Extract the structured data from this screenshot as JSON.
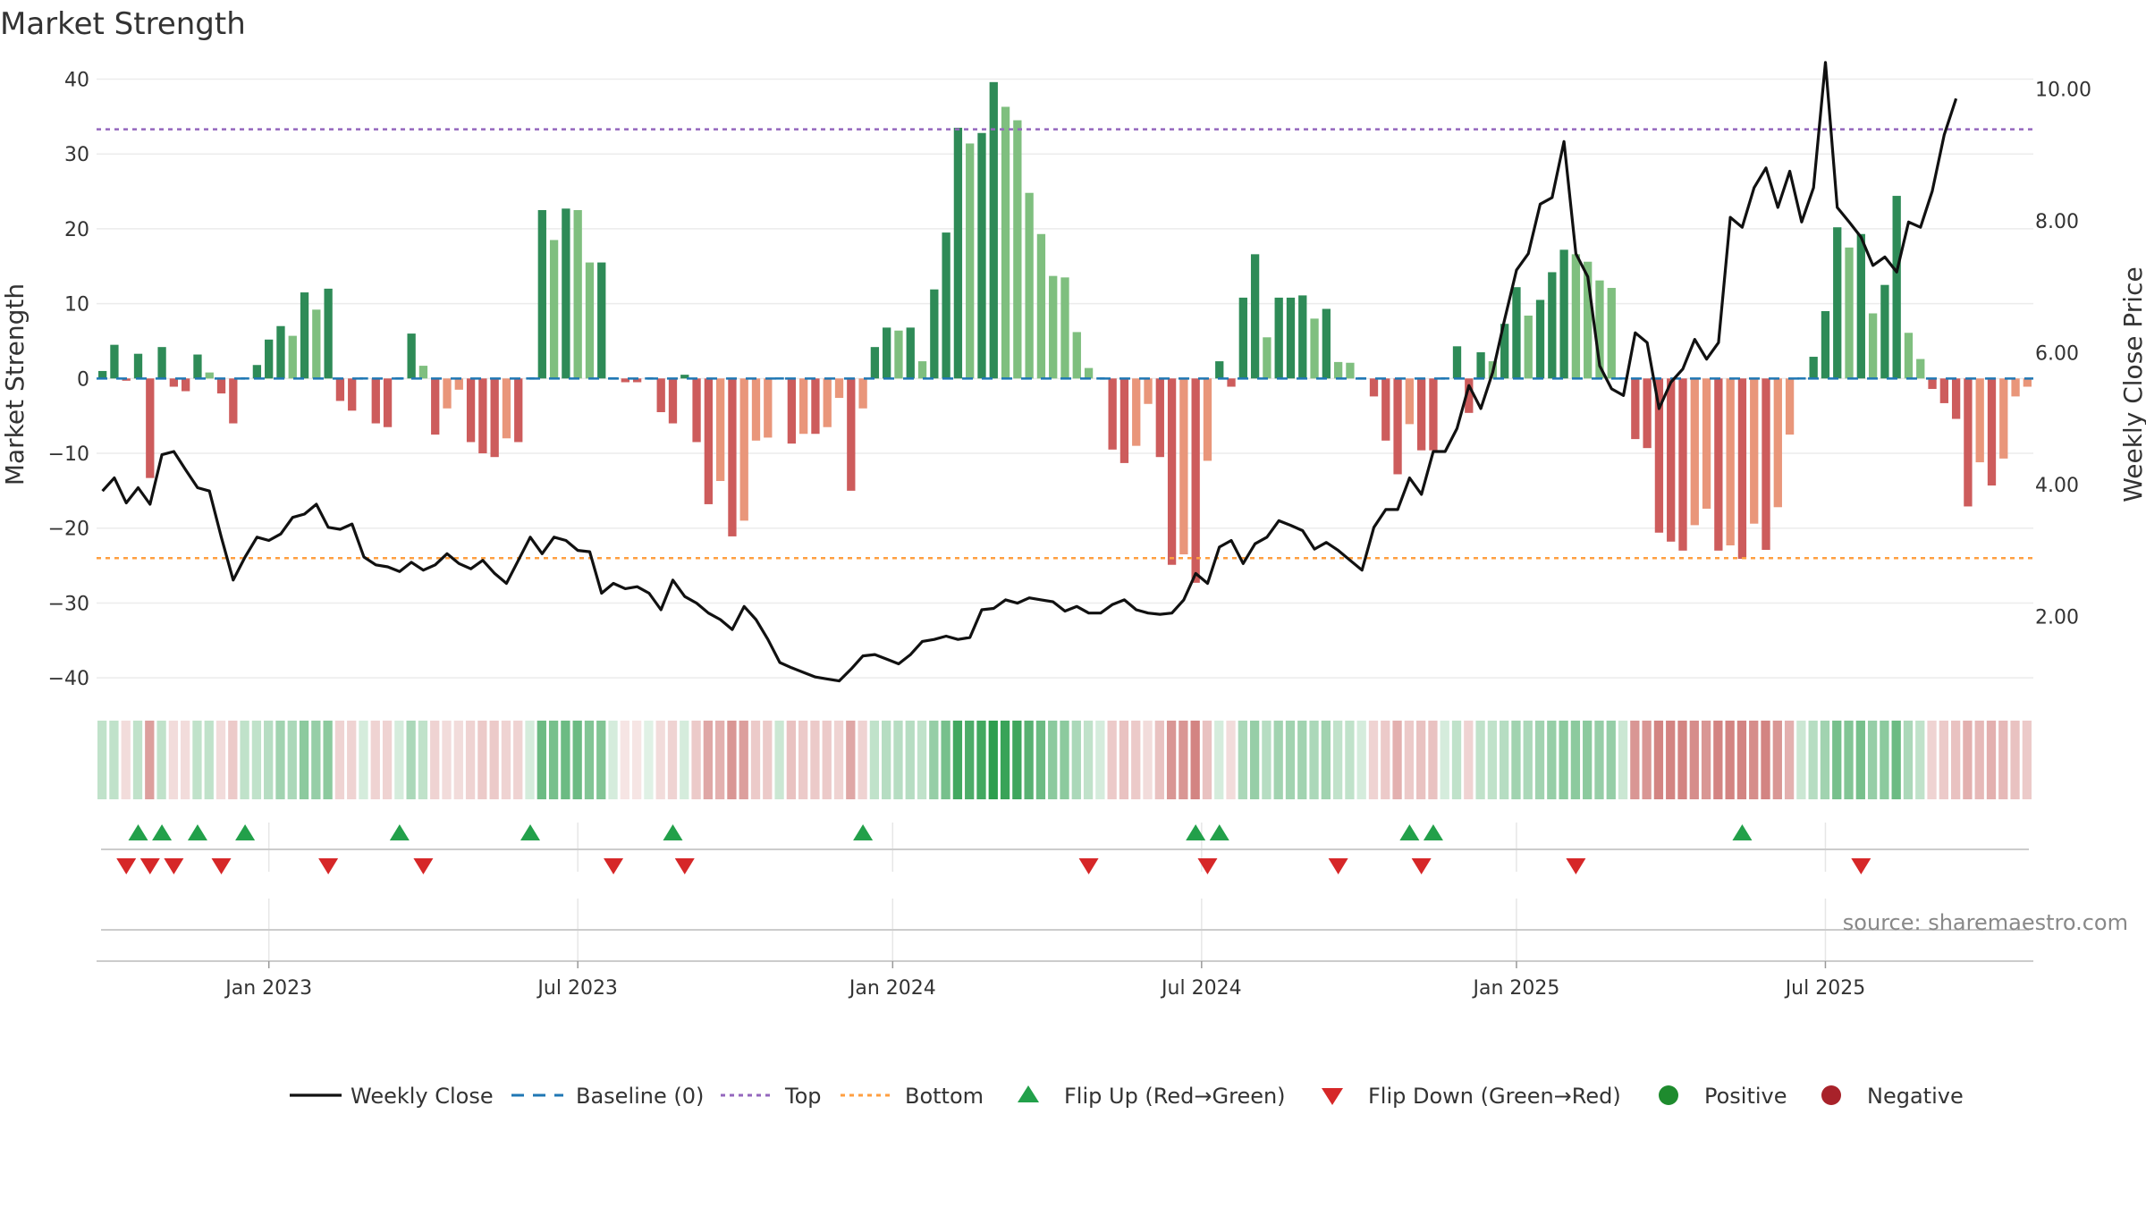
{
  "chart_data": {
    "type": "bar",
    "title": "Market Strength",
    "ylabel_left": "Market Strength",
    "ylabel_right": "Weekly Close Price",
    "ylim_left": [
      -45,
      44
    ],
    "ylim_right": [
      0.5,
      10.6
    ],
    "left_ticks": [
      40,
      30,
      20,
      10,
      0,
      -10,
      -20,
      -30,
      -40
    ],
    "left_tick_labels": [
      "40",
      "30",
      "20",
      "10",
      "0",
      "−10",
      "−20",
      "−30",
      "−40"
    ],
    "right_ticks": [
      10,
      8,
      6,
      4,
      2
    ],
    "right_tick_labels": [
      "10.00",
      "8.00",
      "6.00",
      "4.00",
      "2.00"
    ],
    "x_tick_weeks": [
      14.5,
      40.5,
      67,
      93,
      119.5,
      145.5
    ],
    "x_tick_labels": [
      "Jan 2023",
      "Jul 2023",
      "Jan 2024",
      "Jul 2024",
      "Jan 2025",
      "Jul 2025"
    ],
    "top_line": 33.3,
    "bottom_line": -24.0,
    "strength": [
      1,
      4.5,
      -0.3,
      3.3,
      -13.3,
      4.2,
      -1.1,
      -1.7,
      3.2,
      0.8,
      -2,
      -6,
      0,
      1.8,
      5.2,
      7,
      5.7,
      11.5,
      9.2,
      12,
      -3,
      -4.3,
      0,
      -6,
      -6.5,
      0,
      6,
      1.7,
      -7.5,
      -4,
      -1.5,
      -8.5,
      -10,
      -10.5,
      -8,
      -8.5,
      0,
      22.5,
      18.5,
      22.7,
      22.5,
      15.5,
      15.5,
      0,
      -0.5,
      -0.5,
      0,
      -4.5,
      -6,
      0.5,
      -8.5,
      -16.8,
      -13.7,
      -21.1,
      -19,
      -8.3,
      -7.9,
      0,
      -8.7,
      -7.4,
      -7.4,
      -6.5,
      -2.6,
      -15,
      -4,
      4.2,
      6.8,
      6.4,
      6.8,
      2.3,
      11.9,
      19.5,
      33.5,
      31.4,
      32.8,
      39.6,
      36.3,
      34.5,
      24.8,
      19.3,
      13.7,
      13.5,
      6.2,
      1.4,
      0,
      -9.5,
      -11.3,
      -9,
      -3.4,
      -10.5,
      -24.9,
      -23.5,
      -27.3,
      -11,
      2.3,
      -1.1,
      10.8,
      16.6,
      5.5,
      10.8,
      10.8,
      11.1,
      8,
      9.3,
      2.2,
      2.1,
      0,
      -2.4,
      -8.3,
      -12.8,
      -6.1,
      -9.6,
      -9.6,
      0,
      4.3,
      -4.6,
      3.5,
      2.3,
      7.3,
      12.2,
      8.4,
      10.5,
      14.2,
      17.2,
      16.6,
      15.6,
      13.1,
      12.1,
      0,
      -8.1,
      -9.3,
      -20.6,
      -21.8,
      -23,
      -19.6,
      -17.4,
      -23,
      -22.3,
      -24.1,
      -19.4,
      -22.9,
      -17.2,
      -7.5,
      0,
      2.9,
      9,
      20.2,
      17.5,
      19.3,
      8.7,
      12.5,
      24.4,
      6.1,
      2.6,
      -1.4,
      -3.3,
      -5.4,
      -17.1,
      -11.2,
      -14.3,
      -10.7,
      -2.4,
      -1.1
    ],
    "weekly_close": [
      3.9,
      4.1,
      3.72,
      3.95,
      3.7,
      4.45,
      4.5,
      4.22,
      3.95,
      3.9,
      3.2,
      2.55,
      2.9,
      3.2,
      3.15,
      3.25,
      3.5,
      3.55,
      3.7,
      3.35,
      3.32,
      3.4,
      2.9,
      2.78,
      2.75,
      2.68,
      2.82,
      2.7,
      2.78,
      2.95,
      2.8,
      2.72,
      2.85,
      2.65,
      2.5,
      2.85,
      3.2,
      2.95,
      3.2,
      3.15,
      3,
      2.98,
      2.35,
      2.5,
      2.42,
      2.45,
      2.35,
      2.1,
      2.55,
      2.3,
      2.2,
      2.05,
      1.95,
      1.8,
      2.15,
      1.95,
      1.65,
      1.3,
      1.22,
      1.15,
      1.08,
      1.05,
      1.02,
      1.2,
      1.4,
      1.42,
      1.35,
      1.28,
      1.42,
      1.62,
      1.65,
      1.7,
      1.65,
      1.68,
      2.1,
      2.12,
      2.25,
      2.2,
      2.28,
      2.25,
      2.22,
      2.08,
      2.15,
      2.05,
      2.05,
      2.18,
      2.25,
      2.1,
      2.05,
      2.03,
      2.05,
      2.25,
      2.65,
      2.5,
      3.05,
      3.15,
      2.8,
      3.1,
      3.2,
      3.45,
      3.38,
      3.3,
      3.02,
      3.12,
      3,
      2.85,
      2.7,
      3.35,
      3.62,
      3.62,
      4.1,
      3.85,
      4.5,
      4.5,
      4.85,
      5.5,
      5.15,
      5.7,
      6.5,
      7.25,
      7.5,
      8.25,
      8.35,
      9.2,
      7.5,
      7.15,
      5.8,
      5.45,
      5.35,
      6.3,
      6.15,
      5.15,
      5.55,
      5.75,
      6.2,
      5.9,
      6.15,
      8.05,
      7.9,
      8.5,
      8.8,
      8.2,
      8.75,
      7.98,
      8.5,
      10.4,
      8.2,
      7.98,
      7.75,
      7.32,
      7.45,
      7.22,
      7.98,
      7.9,
      8.45,
      9.3,
      9.85
    ],
    "band_alphas": [
      0.3,
      0.3,
      0.2,
      0.3,
      0.55,
      0.3,
      0.2,
      0.2,
      0.3,
      0.3,
      0.2,
      0.3,
      0.3,
      0.3,
      0.35,
      0.45,
      0.4,
      0.55,
      0.5,
      0.55,
      0.25,
      0.25,
      0.2,
      0.25,
      0.25,
      0.2,
      0.4,
      0.3,
      0.25,
      0.2,
      0.2,
      0.25,
      0.3,
      0.3,
      0.25,
      0.25,
      0.2,
      0.7,
      0.65,
      0.7,
      0.7,
      0.6,
      0.6,
      0.2,
      0.15,
      0.15,
      0.15,
      0.2,
      0.25,
      0.2,
      0.3,
      0.5,
      0.45,
      0.6,
      0.55,
      0.3,
      0.3,
      0.25,
      0.35,
      0.3,
      0.3,
      0.3,
      0.25,
      0.5,
      0.25,
      0.3,
      0.35,
      0.35,
      0.35,
      0.3,
      0.5,
      0.65,
      0.9,
      0.85,
      0.9,
      1,
      0.95,
      0.92,
      0.8,
      0.7,
      0.55,
      0.55,
      0.4,
      0.3,
      0.2,
      0.3,
      0.35,
      0.3,
      0.2,
      0.35,
      0.6,
      0.6,
      0.7,
      0.35,
      0.2,
      0.2,
      0.4,
      0.5,
      0.35,
      0.45,
      0.45,
      0.45,
      0.4,
      0.45,
      0.3,
      0.3,
      0.2,
      0.25,
      0.3,
      0.45,
      0.3,
      0.35,
      0.35,
      0.2,
      0.3,
      0.25,
      0.3,
      0.3,
      0.35,
      0.45,
      0.4,
      0.45,
      0.5,
      0.55,
      0.55,
      0.55,
      0.5,
      0.5,
      0.25,
      0.6,
      0.6,
      0.7,
      0.7,
      0.7,
      0.65,
      0.6,
      0.7,
      0.7,
      0.7,
      0.65,
      0.7,
      0.6,
      0.45,
      0.25,
      0.35,
      0.45,
      0.65,
      0.6,
      0.65,
      0.5,
      0.55,
      0.7,
      0.4,
      0.3,
      0.25,
      0.3,
      0.35,
      0.45,
      0.4,
      0.45,
      0.4,
      0.35,
      0.3
    ],
    "flip_up_weeks": [
      3,
      5,
      8,
      12,
      25,
      36,
      48,
      64,
      92,
      94,
      110,
      112,
      138
    ],
    "flip_down_weeks": [
      2,
      4,
      6,
      10,
      19,
      27,
      43,
      49,
      83,
      93,
      104,
      111,
      124,
      148
    ],
    "source": "source: sharemaestro.com",
    "legend": [
      {
        "key": "weekly-close",
        "label": "Weekly Close"
      },
      {
        "key": "baseline",
        "label": "Baseline (0)"
      },
      {
        "key": "top",
        "label": "Top"
      },
      {
        "key": "bottom",
        "label": "Bottom"
      },
      {
        "key": "flip-up",
        "label": "Flip Up (Red→Green)"
      },
      {
        "key": "flip-down",
        "label": "Flip Down (Green→Red)"
      },
      {
        "key": "positive",
        "label": "Positive"
      },
      {
        "key": "negative",
        "label": "Negative"
      }
    ],
    "colors": {
      "pos_strong": "#2e8b57",
      "pos_light": "#7fbf7f",
      "neg_strong": "#cd5c5c",
      "neg_light": "#e9967a",
      "band_pos": "#2e9e4f",
      "band_neg": "#c0504d",
      "line": "#111111",
      "baseline": "#1f77b4",
      "top": "#9467bd",
      "bottom": "#ff9f40",
      "flip_up": "#22a04a",
      "flip_down": "#d62728",
      "positive_dot": "#1e8b2e",
      "negative_dot": "#a8222a"
    }
  }
}
